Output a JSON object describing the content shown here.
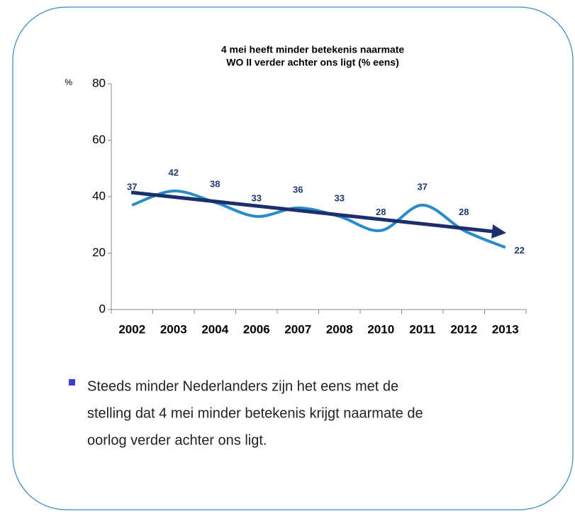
{
  "chart_data": {
    "type": "line",
    "title": [
      "4 mei heeft minder betekenis naarmate",
      "WO II verder achter ons ligt (% eens)"
    ],
    "y_unit": "%",
    "categories": [
      "2002",
      "2003",
      "2004",
      "2006",
      "2007",
      "2008",
      "2010",
      "2011",
      "2012",
      "2013"
    ],
    "values": [
      37,
      42,
      38,
      33,
      36,
      33,
      28,
      37,
      28,
      22
    ],
    "color": "#2a8bcb",
    "ylim": [
      0,
      80
    ],
    "yticks": [
      0,
      20,
      40,
      60,
      80
    ],
    "grid": false
  },
  "bullet_lines": [
    "Steeds minder Nederlanders zijn het eens met de",
    "stelling dat 4 mei minder betekenis krijgt naarmate de",
    "oorlog verder achter ons ligt."
  ]
}
